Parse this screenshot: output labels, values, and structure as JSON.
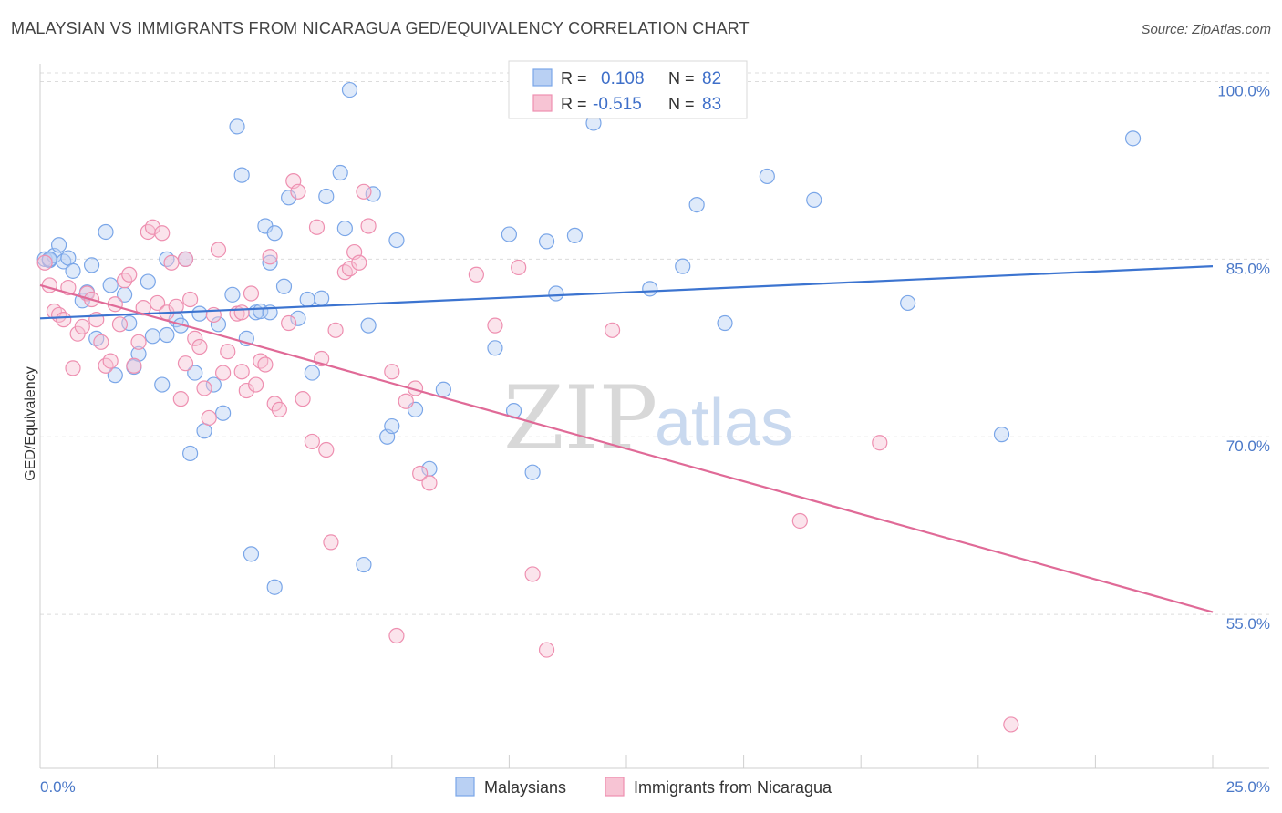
{
  "header": {
    "title": "MALAYSIAN VS IMMIGRANTS FROM NICARAGUA GED/EQUIVALENCY CORRELATION CHART",
    "source": "Source: ZipAtlas.com"
  },
  "watermark": {
    "zip": "ZIP",
    "atlas": "atlas"
  },
  "legend_top": {
    "r_label": "R =",
    "n_label": "N =",
    "rows": [
      {
        "r": "0.108",
        "n": "82",
        "color": "#7aa6e8",
        "fill": "#b9d0f3"
      },
      {
        "r": "-0.515",
        "n": "83",
        "color": "#ee8fb0",
        "fill": "#f7c4d4"
      }
    ]
  },
  "colors": {
    "blue": "#3c74d0",
    "pink": "#e06a97",
    "blue_fill": "#b9d0f3",
    "pink_fill": "#f7c4d4",
    "grid": "#dcdcdc",
    "tick_text": "#4a78c8"
  },
  "chart_data": {
    "type": "scatter",
    "title": "MALAYSIAN VS IMMIGRANTS FROM NICARAGUA GED/EQUIVALENCY CORRELATION CHART",
    "xlabel": "",
    "ylabel": "GED/Equivalency",
    "xlim": [
      0,
      25
    ],
    "ylim": [
      42,
      101.5
    ],
    "x_tick_labels": [
      "0.0%",
      "25.0%"
    ],
    "y_ticks": [
      55,
      70,
      85,
      100
    ],
    "y_tick_labels": [
      "55.0%",
      "70.0%",
      "85.0%",
      "100.0%"
    ],
    "grid": true,
    "legend_placement": "top-center",
    "series": [
      {
        "name": "Malaysians",
        "color": "#3c74d0",
        "r": 0.108,
        "n": 82,
        "trend": {
          "x": [
            0,
            25
          ],
          "y": [
            80.0,
            84.4
          ]
        },
        "points": [
          [
            0.1,
            85.0
          ],
          [
            0.2,
            84.9
          ],
          [
            0.3,
            85.3
          ],
          [
            0.4,
            86.2
          ],
          [
            0.5,
            84.8
          ],
          [
            0.6,
            85.1
          ],
          [
            0.7,
            84.0
          ],
          [
            0.9,
            81.5
          ],
          [
            1.0,
            82.2
          ],
          [
            1.1,
            84.5
          ],
          [
            1.2,
            78.3
          ],
          [
            1.4,
            87.3
          ],
          [
            1.5,
            82.8
          ],
          [
            1.6,
            75.2
          ],
          [
            1.8,
            82.0
          ],
          [
            1.9,
            79.6
          ],
          [
            2.0,
            75.9
          ],
          [
            2.1,
            77.0
          ],
          [
            2.3,
            83.1
          ],
          [
            2.4,
            78.5
          ],
          [
            2.6,
            74.4
          ],
          [
            2.7,
            78.6
          ],
          [
            2.9,
            79.9
          ],
          [
            3.0,
            79.4
          ],
          [
            3.1,
            85.0
          ],
          [
            3.2,
            68.6
          ],
          [
            3.3,
            75.4
          ],
          [
            3.4,
            80.4
          ],
          [
            3.5,
            70.5
          ],
          [
            3.7,
            74.4
          ],
          [
            3.8,
            79.5
          ],
          [
            3.9,
            72.0
          ],
          [
            4.1,
            82.0
          ],
          [
            4.2,
            96.2
          ],
          [
            4.3,
            92.1
          ],
          [
            4.4,
            78.3
          ],
          [
            4.5,
            60.1
          ],
          [
            4.6,
            80.5
          ],
          [
            4.8,
            87.8
          ],
          [
            4.9,
            84.7
          ],
          [
            5.0,
            87.2
          ],
          [
            5.2,
            82.7
          ],
          [
            5.3,
            90.2
          ],
          [
            5.5,
            80.0
          ],
          [
            5.7,
            81.6
          ],
          [
            5.8,
            75.4
          ],
          [
            6.1,
            90.3
          ],
          [
            6.4,
            92.3
          ],
          [
            6.5,
            87.6
          ],
          [
            6.6,
            99.3
          ],
          [
            6.9,
            59.2
          ],
          [
            7.0,
            79.4
          ],
          [
            7.1,
            90.5
          ],
          [
            7.4,
            70.0
          ],
          [
            7.5,
            70.9
          ],
          [
            7.6,
            86.6
          ],
          [
            8.0,
            72.3
          ],
          [
            8.3,
            67.3
          ],
          [
            8.6,
            74.0
          ],
          [
            9.7,
            77.5
          ],
          [
            10.0,
            87.1
          ],
          [
            10.1,
            72.2
          ],
          [
            10.5,
            67.0
          ],
          [
            10.8,
            86.5
          ],
          [
            11.0,
            82.1
          ],
          [
            11.4,
            87.0
          ],
          [
            11.8,
            96.5
          ],
          [
            13.0,
            82.5
          ],
          [
            13.7,
            84.4
          ],
          [
            14.0,
            89.6
          ],
          [
            14.6,
            79.6
          ],
          [
            15.5,
            92.0
          ],
          [
            16.5,
            90.0
          ],
          [
            18.5,
            81.3
          ],
          [
            20.5,
            70.2
          ],
          [
            23.3,
            95.2
          ],
          [
            2.7,
            85.0
          ],
          [
            0.2,
            85.0
          ],
          [
            4.7,
            80.6
          ],
          [
            6.0,
            81.7
          ],
          [
            5.0,
            57.3
          ],
          [
            4.9,
            80.5
          ]
        ]
      },
      {
        "name": "Immigrants from Nicaragua",
        "color": "#e06a97",
        "r": -0.515,
        "n": 83,
        "trend": {
          "x": [
            0,
            25
          ],
          "y": [
            82.8,
            55.2
          ]
        },
        "points": [
          [
            0.1,
            84.7
          ],
          [
            0.2,
            82.8
          ],
          [
            0.3,
            80.6
          ],
          [
            0.4,
            80.3
          ],
          [
            0.5,
            79.9
          ],
          [
            0.6,
            82.6
          ],
          [
            0.7,
            75.8
          ],
          [
            0.8,
            78.7
          ],
          [
            0.9,
            79.3
          ],
          [
            1.0,
            82.1
          ],
          [
            1.1,
            81.6
          ],
          [
            1.2,
            79.9
          ],
          [
            1.3,
            78.0
          ],
          [
            1.4,
            76.0
          ],
          [
            1.5,
            76.4
          ],
          [
            1.6,
            81.2
          ],
          [
            1.7,
            79.5
          ],
          [
            1.8,
            83.2
          ],
          [
            1.9,
            83.7
          ],
          [
            2.0,
            76.0
          ],
          [
            2.1,
            78.0
          ],
          [
            2.2,
            80.9
          ],
          [
            2.3,
            87.3
          ],
          [
            2.4,
            87.7
          ],
          [
            2.5,
            81.3
          ],
          [
            2.6,
            87.2
          ],
          [
            2.7,
            80.5
          ],
          [
            2.8,
            84.7
          ],
          [
            2.9,
            81.0
          ],
          [
            3.0,
            73.2
          ],
          [
            3.1,
            85.0
          ],
          [
            3.2,
            81.6
          ],
          [
            3.3,
            78.3
          ],
          [
            3.4,
            77.6
          ],
          [
            3.5,
            74.1
          ],
          [
            3.6,
            71.6
          ],
          [
            3.7,
            80.3
          ],
          [
            3.8,
            85.8
          ],
          [
            3.9,
            75.4
          ],
          [
            4.0,
            77.2
          ],
          [
            4.2,
            80.4
          ],
          [
            4.3,
            75.5
          ],
          [
            4.4,
            73.9
          ],
          [
            4.5,
            82.1
          ],
          [
            4.6,
            74.4
          ],
          [
            4.7,
            76.4
          ],
          [
            4.8,
            76.1
          ],
          [
            4.9,
            85.2
          ],
          [
            5.0,
            72.8
          ],
          [
            5.1,
            72.3
          ],
          [
            5.3,
            79.6
          ],
          [
            5.4,
            91.6
          ],
          [
            5.5,
            90.7
          ],
          [
            5.6,
            73.2
          ],
          [
            5.8,
            69.6
          ],
          [
            5.9,
            87.7
          ],
          [
            6.0,
            76.6
          ],
          [
            6.1,
            68.9
          ],
          [
            6.2,
            61.1
          ],
          [
            6.3,
            79.0
          ],
          [
            6.5,
            83.9
          ],
          [
            6.6,
            84.2
          ],
          [
            6.7,
            85.6
          ],
          [
            6.8,
            84.7
          ],
          [
            6.9,
            90.7
          ],
          [
            7.0,
            87.8
          ],
          [
            7.5,
            75.5
          ],
          [
            7.6,
            53.2
          ],
          [
            8.0,
            74.1
          ],
          [
            8.1,
            66.9
          ],
          [
            8.3,
            66.1
          ],
          [
            9.3,
            83.7
          ],
          [
            9.7,
            79.4
          ],
          [
            10.2,
            84.3
          ],
          [
            10.5,
            58.4
          ],
          [
            10.8,
            52.0
          ],
          [
            12.2,
            79.0
          ],
          [
            16.2,
            62.9
          ],
          [
            17.9,
            69.5
          ],
          [
            20.7,
            45.7
          ],
          [
            3.1,
            76.2
          ],
          [
            4.3,
            80.5
          ],
          [
            7.8,
            73.0
          ]
        ]
      }
    ]
  },
  "bottom_legend": [
    {
      "label": "Malaysians"
    },
    {
      "label": "Immigrants from Nicaragua"
    }
  ]
}
